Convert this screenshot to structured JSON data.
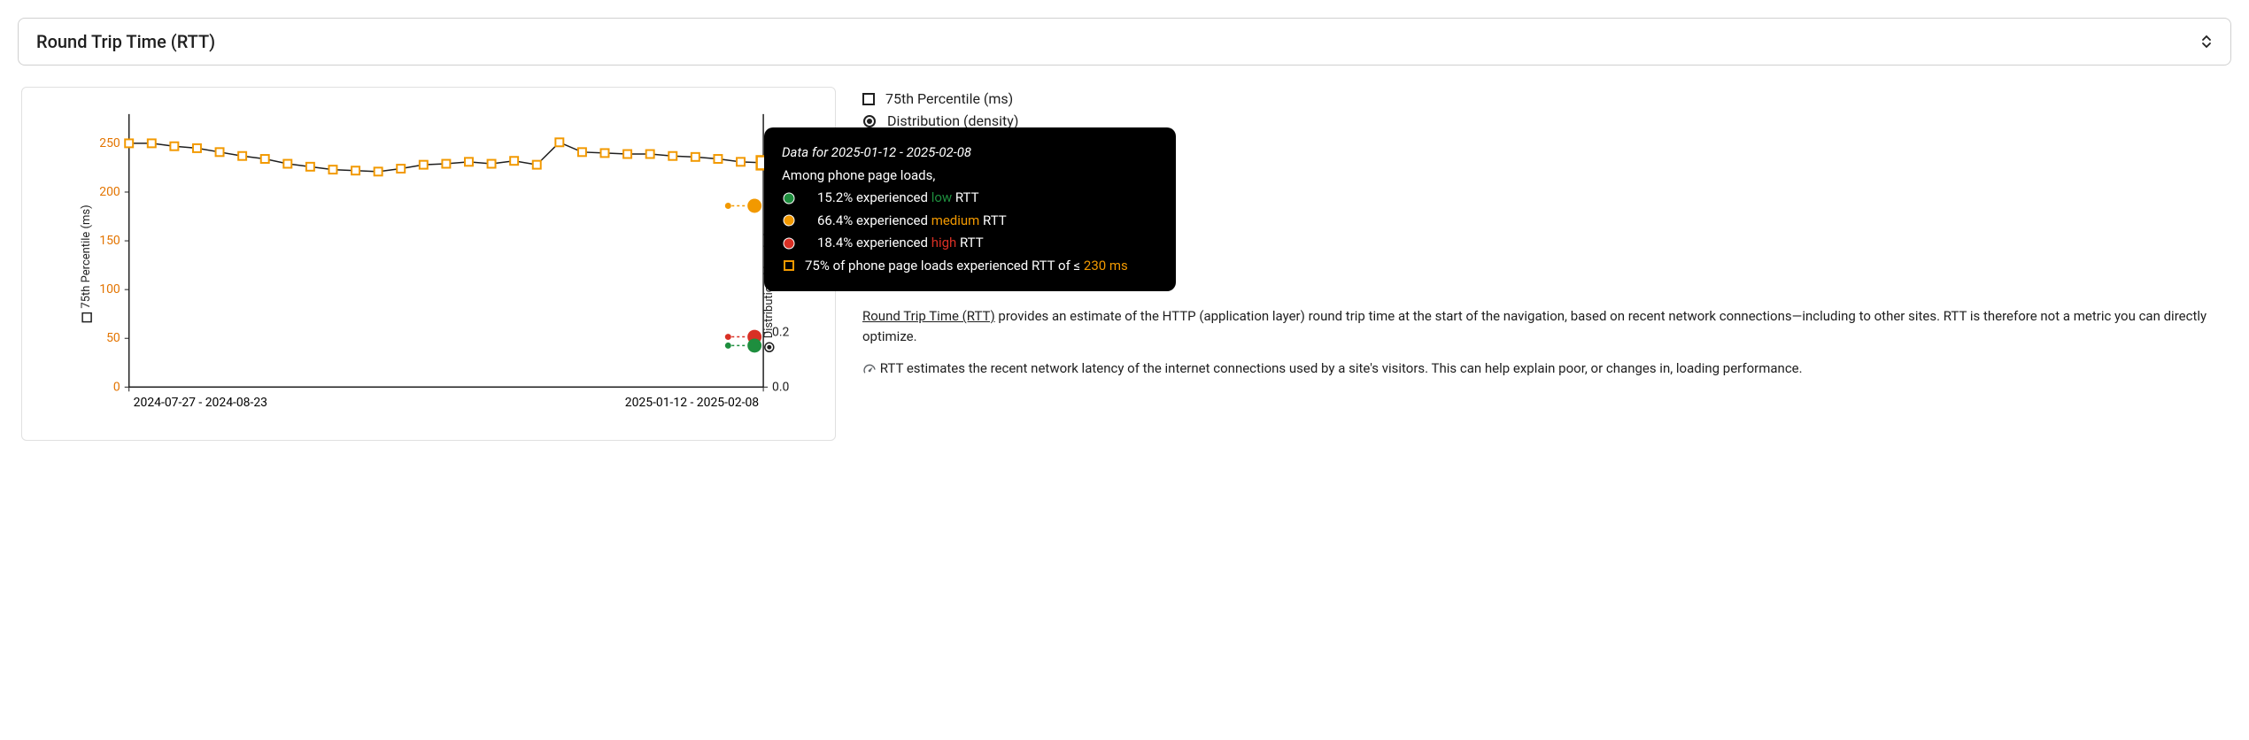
{
  "header": {
    "title": "Round Trip Time (RTT)"
  },
  "legend": {
    "percentile": "75th Percentile (ms)",
    "distribution": "Distribution (density)"
  },
  "axes": {
    "left_label": "75th Percentile (ms)",
    "right_label": "Distribution (density)",
    "left_ticks": [
      0,
      50,
      100,
      150,
      200,
      250
    ],
    "left_color": "#e37400",
    "right_ticks": [
      0.0,
      0.2
    ],
    "right_color": "#1f1f1f",
    "x_labels": [
      "2024-07-27 - 2024-08-23",
      "2025-01-12 - 2025-02-08"
    ],
    "ylim_left": [
      0,
      280
    ],
    "ylim_right": [
      0,
      1.0
    ]
  },
  "chart": {
    "type": "line",
    "plot_background": "#ffffff",
    "axis_line_color": "#1f1f1f",
    "line_color": "#1f1f1f",
    "marker_border": "#f29900",
    "marker_fill": "#ffffff",
    "marker_size": 9,
    "last_marker_size": 15,
    "series_p75": [
      250,
      250,
      247,
      245,
      241,
      237,
      234,
      229,
      226,
      223,
      222,
      221,
      224,
      228,
      229,
      231,
      229,
      232,
      228,
      251,
      241,
      240,
      239,
      239,
      237,
      236,
      234,
      231,
      230
    ],
    "dist_markers": {
      "low": {
        "value": 0.152,
        "color": "#1e8e3e",
        "small_color": "#1e8e3e"
      },
      "medium": {
        "value": 0.664,
        "color": "#f29900",
        "small_color": "#f29900"
      },
      "high": {
        "value": 0.184,
        "color": "#d93025",
        "small_color": "#d93025"
      }
    }
  },
  "tooltip": {
    "date_range": "Data for 2025-01-12 - 2025-02-08",
    "intro": "Among phone page loads,",
    "rows": [
      {
        "pct": "15.2%",
        "verb": "experienced",
        "bucket": "low",
        "metric": "RTT",
        "color": "#1e8e3e"
      },
      {
        "pct": "66.4%",
        "verb": "experienced",
        "bucket": "medium",
        "metric": "RTT",
        "color": "#f29900"
      },
      {
        "pct": "18.4%",
        "verb": "experienced",
        "bucket": "high",
        "metric": "RTT",
        "color": "#d93025"
      }
    ],
    "summary_pre": "75% of phone page loads experienced RTT of ≤ ",
    "summary_val": "230 ms",
    "summary_color": "#f29900"
  },
  "description": {
    "link_text": "Round Trip Time (RTT)",
    "para1_rest": " provides an estimate of the HTTP (application layer) round trip time at the start of the navigation, based on recent network connections—including to other sites. RTT is therefore not a metric you can directly optimize.",
    "para2": "RTT estimates the recent network latency of the internet connections used by a site's visitors. This can help explain poor, or changes in, loading performance."
  }
}
